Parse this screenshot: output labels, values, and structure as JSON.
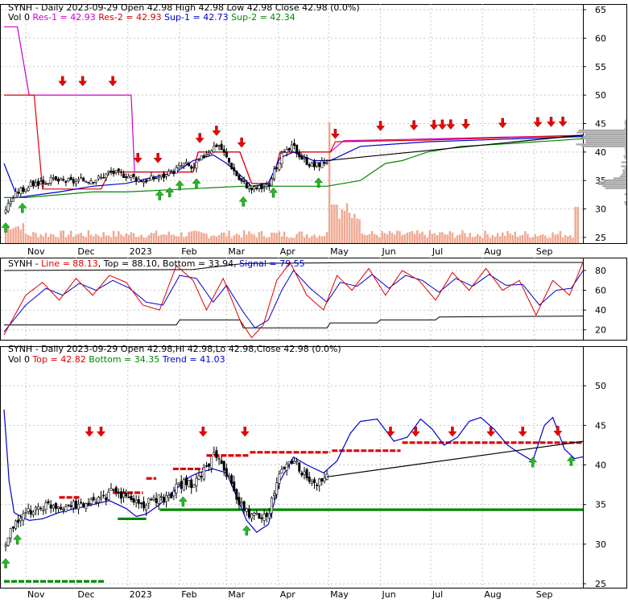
{
  "chart_data": [
    {
      "type": "candlestick",
      "panel": "price",
      "title": "SYNH - Daily 2023-09-29 Open 42.98",
      "header_values": [
        {
          "label": "High 42.98",
          "color": "#000000"
        },
        {
          "label": "Low 42.98",
          "color": "#000000"
        },
        {
          "label": "Close 42.98 (0.0%)",
          "color": "#000000"
        }
      ],
      "legend": [
        {
          "label": "Vol 0",
          "color": "#000000"
        },
        {
          "label": "Res-1 = 42.93",
          "color": "#cc00cc"
        },
        {
          "label": "Res-2 = 42.93",
          "color": "#dd0000"
        },
        {
          "label": "Sup-1 = 42.73",
          "color": "#0000cc"
        },
        {
          "label": "Sup-2 = 42.34",
          "color": "#008800"
        }
      ],
      "y_ticks": [
        "65",
        "60",
        "55",
        "50",
        "45",
        "40",
        "35",
        "30",
        "25"
      ],
      "ylim": [
        24,
        66
      ],
      "x_tick_labels": [
        "Nov",
        "Dec",
        "2023",
        "Feb",
        "Mar",
        "Apr",
        "May",
        "Jun",
        "Jul",
        "Aug",
        "Sep"
      ],
      "x_tick_days": [
        0,
        30,
        61,
        92,
        120,
        151,
        181,
        212,
        242,
        273,
        304
      ],
      "x_range_days": [
        -13,
        333
      ],
      "close_keyframes": [
        [
          -13,
          29.5
        ],
        [
          -10,
          31
        ],
        [
          -5,
          33
        ],
        [
          5,
          34.5
        ],
        [
          15,
          35
        ],
        [
          30,
          34.8
        ],
        [
          45,
          35.5
        ],
        [
          50,
          36.5
        ],
        [
          60,
          36
        ],
        [
          70,
          35
        ],
        [
          85,
          36
        ],
        [
          95,
          38
        ],
        [
          100,
          37
        ],
        [
          108,
          40
        ],
        [
          115,
          41.5
        ],
        [
          120,
          39
        ],
        [
          128,
          35
        ],
        [
          135,
          33.5
        ],
        [
          145,
          34
        ],
        [
          152,
          39
        ],
        [
          160,
          41
        ],
        [
          165,
          39
        ],
        [
          172,
          37.5
        ],
        [
          180,
          38.5
        ],
        [
          185,
          40.5
        ],
        [
          200,
          41.8
        ],
        [
          240,
          42.2
        ],
        [
          280,
          42.6
        ],
        [
          333,
          42.98
        ]
      ],
      "res1": [
        [
          -13,
          62
        ],
        [
          -5,
          62
        ],
        [
          2,
          50
        ],
        [
          54,
          50
        ],
        [
          63,
          50
        ],
        [
          65,
          36.5
        ],
        [
          100,
          36.5
        ],
        [
          103,
          40
        ],
        [
          128,
          40
        ],
        [
          135,
          34.5
        ],
        [
          147,
          34.5
        ],
        [
          152,
          40
        ],
        [
          182,
          40
        ],
        [
          190,
          42
        ],
        [
          240,
          42.3
        ],
        [
          333,
          42.93
        ]
      ],
      "res2": [
        [
          -13,
          50
        ],
        [
          5,
          50
        ],
        [
          10,
          33.5
        ],
        [
          45,
          33.5
        ],
        [
          50,
          36.5
        ],
        [
          100,
          36.5
        ],
        [
          103,
          40
        ],
        [
          128,
          40
        ],
        [
          135,
          34.5
        ],
        [
          147,
          34.5
        ],
        [
          152,
          40
        ],
        [
          182,
          40
        ],
        [
          185,
          41.8
        ],
        [
          240,
          42.1
        ],
        [
          333,
          42.93
        ]
      ],
      "sup1": [
        [
          -13,
          38
        ],
        [
          -5,
          32
        ],
        [
          20,
          33
        ],
        [
          40,
          34
        ],
        [
          60,
          34.5
        ],
        [
          90,
          36.5
        ],
        [
          100,
          38.5
        ],
        [
          112,
          39.5
        ],
        [
          120,
          38
        ],
        [
          128,
          36
        ],
        [
          135,
          34
        ],
        [
          145,
          34.5
        ],
        [
          152,
          39
        ],
        [
          160,
          40
        ],
        [
          172,
          38.5
        ],
        [
          182,
          38.5
        ],
        [
          200,
          41
        ],
        [
          240,
          41.8
        ],
        [
          280,
          42.2
        ],
        [
          333,
          42.73
        ]
      ],
      "sup2": [
        [
          -13,
          32
        ],
        [
          0,
          32
        ],
        [
          40,
          33
        ],
        [
          60,
          33
        ],
        [
          95,
          33.5
        ],
        [
          130,
          34
        ],
        [
          160,
          34
        ],
        [
          180,
          34
        ],
        [
          200,
          35
        ],
        [
          215,
          38
        ],
        [
          225,
          38.5
        ],
        [
          240,
          40
        ],
        [
          260,
          41
        ],
        [
          290,
          41.5
        ],
        [
          333,
          42.34
        ]
      ],
      "sell_days": [
        22,
        34,
        52,
        67,
        79,
        104,
        114,
        129,
        185,
        212,
        232,
        244,
        249,
        254,
        263,
        285,
        306,
        314,
        321
      ],
      "buy_days": [
        -12,
        -2,
        80,
        86,
        92,
        102,
        130,
        148,
        175
      ]
    },
    {
      "type": "line",
      "panel": "stochastic",
      "title": "SYNH - Line = 88.13, Top = 88.10, Bottom = 33.94, Signal = 79.55",
      "legend": [
        {
          "label": "SYNH - ",
          "color": "#000000"
        },
        {
          "label": "Line = 88.13",
          "color": "#dd0000"
        },
        {
          "label": ", Top = 88.10",
          "color": "#000000"
        },
        {
          "label": ", Bottom = 33.94",
          "color": "#000000"
        },
        {
          "label": ", Signal = 79.55",
          "color": "#0000cc"
        }
      ],
      "y_ticks": [
        "80",
        "60",
        "40",
        "20"
      ],
      "ylim": [
        10,
        93
      ],
      "line_keyframes": [
        [
          -13,
          15
        ],
        [
          0,
          55
        ],
        [
          10,
          68
        ],
        [
          20,
          50
        ],
        [
          30,
          72
        ],
        [
          40,
          55
        ],
        [
          50,
          75
        ],
        [
          60,
          68
        ],
        [
          70,
          45
        ],
        [
          80,
          40
        ],
        [
          90,
          85
        ],
        [
          100,
          70
        ],
        [
          108,
          40
        ],
        [
          118,
          72
        ],
        [
          128,
          30
        ],
        [
          135,
          12
        ],
        [
          142,
          25
        ],
        [
          150,
          70
        ],
        [
          158,
          88
        ],
        [
          168,
          55
        ],
        [
          178,
          40
        ],
        [
          186,
          75
        ],
        [
          195,
          60
        ],
        [
          205,
          82
        ],
        [
          215,
          55
        ],
        [
          225,
          80
        ],
        [
          235,
          70
        ],
        [
          245,
          50
        ],
        [
          255,
          78
        ],
        [
          265,
          60
        ],
        [
          275,
          82
        ],
        [
          285,
          60
        ],
        [
          295,
          70
        ],
        [
          305,
          35
        ],
        [
          315,
          70
        ],
        [
          325,
          55
        ],
        [
          333,
          88.13
        ]
      ],
      "signal_keyframes": [
        [
          -13,
          18
        ],
        [
          0,
          45
        ],
        [
          12,
          62
        ],
        [
          22,
          55
        ],
        [
          32,
          67
        ],
        [
          42,
          60
        ],
        [
          52,
          70
        ],
        [
          62,
          62
        ],
        [
          72,
          48
        ],
        [
          82,
          45
        ],
        [
          92,
          75
        ],
        [
          102,
          72
        ],
        [
          112,
          48
        ],
        [
          120,
          65
        ],
        [
          130,
          38
        ],
        [
          137,
          22
        ],
        [
          145,
          30
        ],
        [
          153,
          60
        ],
        [
          160,
          80
        ],
        [
          170,
          62
        ],
        [
          180,
          48
        ],
        [
          188,
          68
        ],
        [
          198,
          64
        ],
        [
          207,
          76
        ],
        [
          217,
          62
        ],
        [
          227,
          75
        ],
        [
          237,
          70
        ],
        [
          247,
          58
        ],
        [
          257,
          72
        ],
        [
          267,
          64
        ],
        [
          277,
          76
        ],
        [
          287,
          65
        ],
        [
          297,
          66
        ],
        [
          307,
          45
        ],
        [
          317,
          60
        ],
        [
          326,
          62
        ],
        [
          333,
          79.55
        ]
      ],
      "top_line": [
        [
          -13,
          80
        ],
        [
          100,
          81
        ],
        [
          130,
          87
        ],
        [
          200,
          88
        ],
        [
          333,
          88.1
        ]
      ],
      "bottom_line": [
        [
          -13,
          25
        ],
        [
          90,
          25
        ],
        [
          92,
          30
        ],
        [
          128,
          30
        ],
        [
          130,
          22
        ],
        [
          180,
          22
        ],
        [
          182,
          27
        ],
        [
          210,
          27
        ],
        [
          212,
          30
        ],
        [
          245,
          30
        ],
        [
          247,
          33
        ],
        [
          333,
          33.94
        ]
      ]
    },
    {
      "type": "candlestick",
      "panel": "trend",
      "title": "SYNH - Daily 2023-09-29 Open 42.98,Hi 42.98,Lo 42.98,Close 42.98 (0.0%)",
      "legend": [
        {
          "label": "Vol 0",
          "color": "#000000"
        },
        {
          "label": "Top = 42.82",
          "color": "#dd0000"
        },
        {
          "label": "Bottom = 34.35",
          "color": "#008800"
        },
        {
          "label": "Trend = 41.03",
          "color": "#0000cc"
        }
      ],
      "y_ticks": [
        "50",
        "45",
        "40",
        "35",
        "30",
        "25"
      ],
      "ylim": [
        24.5,
        55
      ],
      "top_steps": [
        [
          20,
          32,
          35.9
        ],
        [
          52,
          70,
          36.5
        ],
        [
          72,
          78,
          38.3
        ],
        [
          88,
          107,
          39.5
        ],
        [
          108,
          134,
          41.2
        ],
        [
          134,
          182,
          41.6
        ],
        [
          183,
          224,
          41.8
        ],
        [
          225,
          333,
          42.82
        ]
      ],
      "bottom_steps": [
        [
          -13,
          47,
          25.3
        ],
        [
          55,
          72,
          33.2
        ],
        [
          80,
          333,
          34.35
        ]
      ],
      "trend_keyframes": [
        [
          -13,
          47
        ],
        [
          -10,
          38
        ],
        [
          -7,
          34
        ],
        [
          -3,
          33.5
        ],
        [
          2,
          33
        ],
        [
          10,
          33.2
        ],
        [
          20,
          34
        ],
        [
          30,
          34.5
        ],
        [
          40,
          35
        ],
        [
          50,
          35.5
        ],
        [
          60,
          34.5
        ],
        [
          66,
          33.5
        ],
        [
          72,
          33.8
        ],
        [
          80,
          35
        ],
        [
          90,
          37
        ],
        [
          98,
          38.5
        ],
        [
          103,
          39
        ],
        [
          112,
          39.5
        ],
        [
          120,
          39
        ],
        [
          126,
          36
        ],
        [
          132,
          33
        ],
        [
          138,
          31.5
        ],
        [
          145,
          32.5
        ],
        [
          152,
          38
        ],
        [
          160,
          41
        ],
        [
          168,
          40
        ],
        [
          178,
          39
        ],
        [
          186,
          40.5
        ],
        [
          194,
          44
        ],
        [
          200,
          45.5
        ],
        [
          210,
          45.8
        ],
        [
          220,
          43
        ],
        [
          228,
          43.5
        ],
        [
          236,
          45.8
        ],
        [
          243,
          44.5
        ],
        [
          250,
          42.5
        ],
        [
          258,
          43.5
        ],
        [
          265,
          45.5
        ],
        [
          272,
          46
        ],
        [
          280,
          44.5
        ],
        [
          288,
          42.5
        ],
        [
          295,
          41.5
        ],
        [
          303,
          40.5
        ],
        [
          310,
          45
        ],
        [
          315,
          46
        ],
        [
          322,
          42
        ],
        [
          328,
          40.8
        ],
        [
          333,
          41.03
        ]
      ],
      "sell_days": [
        38,
        45,
        106,
        131,
        218,
        233,
        255,
        278,
        297,
        318
      ],
      "buy_days": [
        -12,
        -5,
        94,
        132,
        303,
        326
      ]
    }
  ]
}
